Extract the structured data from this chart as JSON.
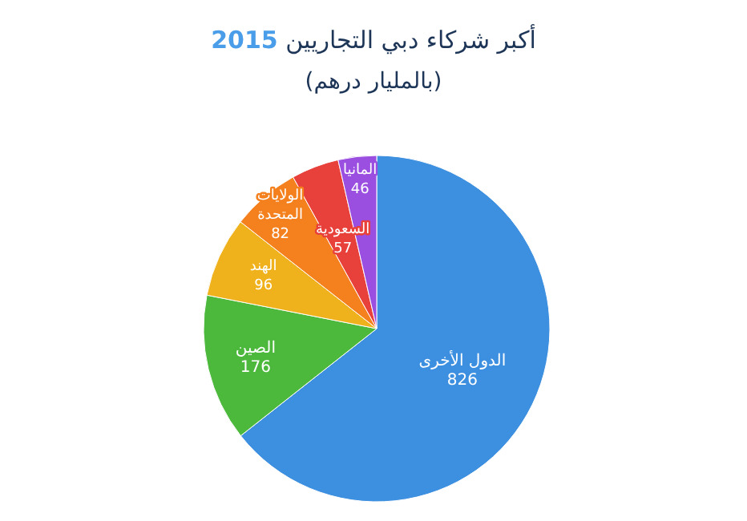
{
  "chart_data": {
    "type": "pie",
    "title": "أكبر شركاء دبي التجاريين 2015",
    "subtitle": "(بالمليار درهم)",
    "categories": [
      "الدول الأخرى",
      "الصين",
      "الهند",
      "الولايات المتحدة",
      "السعودية",
      "المانيا"
    ],
    "values": [
      826,
      176,
      96,
      82,
      57,
      46
    ],
    "colors": [
      "#3d8fe0",
      "#4cb83c",
      "#f0b21c",
      "#f4801e",
      "#e8403a",
      "#9b4fe0"
    ],
    "data_labels": true
  }
}
